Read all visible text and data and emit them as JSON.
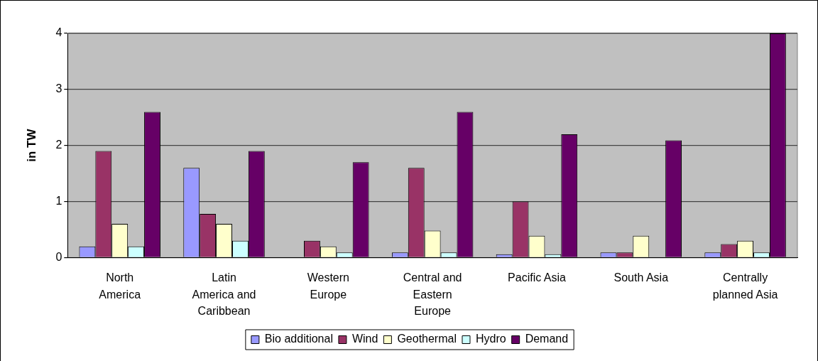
{
  "chart_data": {
    "type": "bar",
    "ylabel": "in TW",
    "categories": [
      "North America",
      "Latin America and Caribbean",
      "Western Europe",
      "Central and Eastern Europe",
      "Pacific Asia",
      "South Asia",
      "Centrally planned Asia"
    ],
    "series": [
      {
        "name": "Bio additional",
        "color": "#9999ff",
        "values": [
          0.2,
          1.6,
          null,
          0.09,
          0.06,
          0.09,
          0.09
        ]
      },
      {
        "name": "Wind",
        "color": "#993366",
        "values": [
          1.9,
          0.78,
          0.3,
          1.6,
          1.0,
          0.09,
          0.24
        ]
      },
      {
        "name": "Geothermal",
        "color": "#ffffcc",
        "values": [
          0.6,
          0.6,
          0.2,
          0.48,
          0.39,
          0.39,
          0.3
        ]
      },
      {
        "name": "Hydro",
        "color": "#ccffff",
        "values": [
          0.2,
          0.3,
          0.09,
          0.09,
          0.06,
          null,
          0.09
        ]
      },
      {
        "name": "Demand",
        "color": "#660066",
        "values": [
          2.6,
          1.9,
          1.7,
          2.6,
          2.2,
          2.09,
          4.0
        ]
      }
    ],
    "ylim": [
      0,
      4
    ],
    "yticks": [
      0,
      1,
      2,
      3,
      4
    ],
    "grid": "y",
    "legend": "bottom"
  }
}
